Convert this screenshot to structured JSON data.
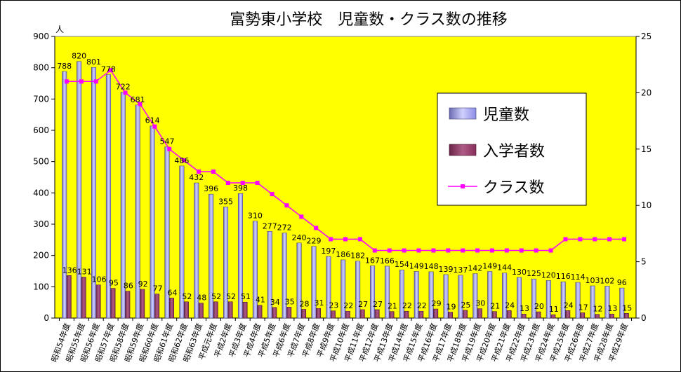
{
  "chart_data": {
    "type": "bar",
    "title": "富勢東小学校　児童数・クラス数の推移",
    "categories": [
      "昭和54年度",
      "昭和55年度",
      "昭和56年度",
      "昭和57年度",
      "昭和58年度",
      "昭和59年度",
      "昭和60年度",
      "昭和61年度",
      "昭和62年度",
      "昭和63年度",
      "平成元年度",
      "平成2年度",
      "平成3年度",
      "平成4年度",
      "平成5年度",
      "平成6年度",
      "平成7年度",
      "平成8年度",
      "平成9年度",
      "平成10年度",
      "平成11年度",
      "平成12年度",
      "平成13年度",
      "平成14年度",
      "平成15年度",
      "平成16年度",
      "平成17年度",
      "平成18年度",
      "平成19年度",
      "平成20年度",
      "平成21年度",
      "平成22年度",
      "平成23年度",
      "平成24年度",
      "平成25年度",
      "平成26年度",
      "平成27年度",
      "平成28年度",
      "平成29年度"
    ],
    "series": [
      {
        "name": "児童数",
        "type": "bar",
        "secondary_axis": false,
        "data_labels": true,
        "color": "#9999FF",
        "values": [
          788,
          820,
          801,
          778,
          722,
          681,
          614,
          547,
          486,
          432,
          396,
          355,
          398,
          310,
          277,
          272,
          240,
          229,
          197,
          186,
          182,
          167,
          166,
          154,
          149,
          148,
          139,
          137,
          142,
          149,
          144,
          130,
          125,
          120,
          116,
          114,
          103,
          102,
          96
        ]
      },
      {
        "name": "入学者数",
        "type": "bar",
        "secondary_axis": false,
        "data_labels": true,
        "color": "#993366",
        "values": [
          136,
          131,
          106,
          95,
          86,
          92,
          77,
          64,
          52,
          48,
          52,
          52,
          51,
          41,
          34,
          35,
          28,
          31,
          23,
          22,
          27,
          27,
          21,
          22,
          22,
          29,
          19,
          25,
          30,
          21,
          24,
          13,
          20,
          11,
          24,
          17,
          12,
          13,
          15
        ]
      },
      {
        "name": "クラス数",
        "type": "line",
        "secondary_axis": true,
        "data_labels": false,
        "color": "#FF00FF",
        "values": [
          21,
          21,
          21,
          22,
          20,
          19,
          17,
          15,
          14,
          13,
          13,
          12,
          12,
          12,
          11,
          10,
          9,
          8,
          7,
          7,
          7,
          6,
          6,
          6,
          6,
          6,
          6,
          6,
          6,
          6,
          6,
          6,
          6,
          6,
          7,
          7,
          7,
          7,
          7
        ]
      }
    ],
    "y_left": {
      "unit": "人",
      "range": [
        0,
        900
      ],
      "ticks": [
        0,
        100,
        200,
        300,
        400,
        500,
        600,
        700,
        800,
        900
      ]
    },
    "y_right": {
      "range": [
        0,
        25
      ],
      "ticks": [
        0,
        5,
        10,
        15,
        20,
        25
      ]
    },
    "plot_background": "#FFFF00",
    "grid": false,
    "legend": "right"
  }
}
